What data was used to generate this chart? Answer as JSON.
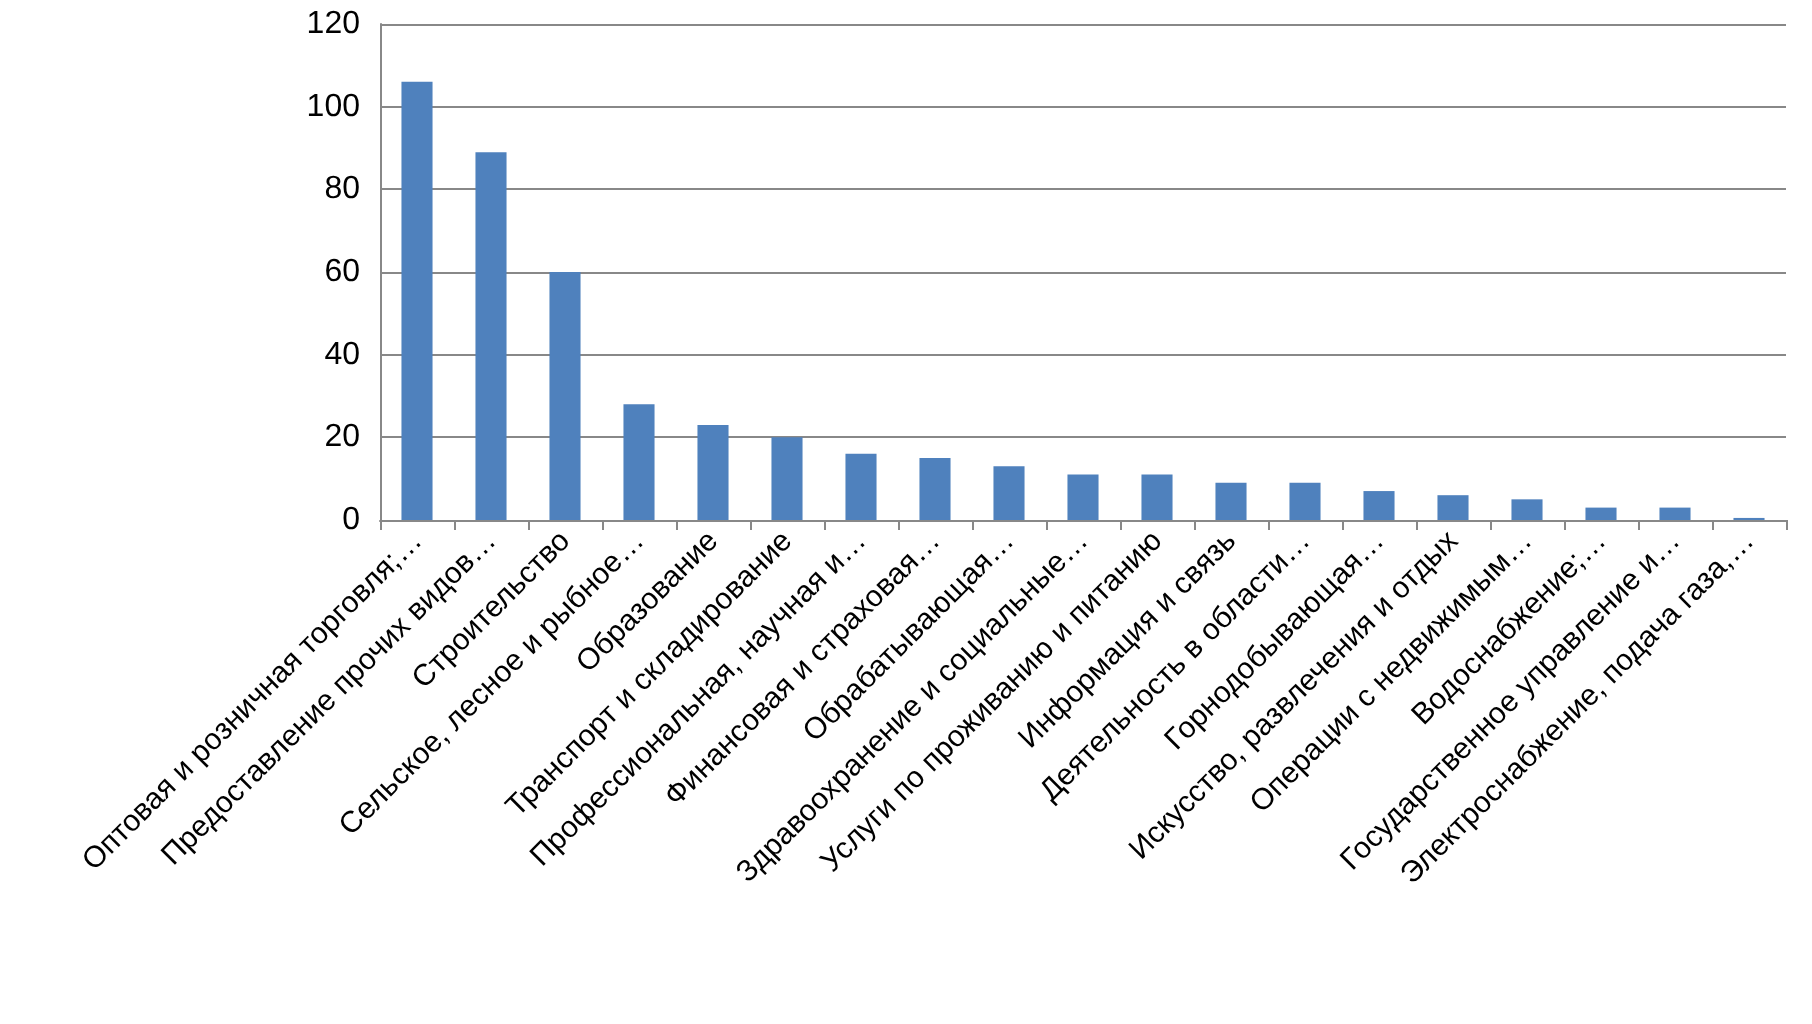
{
  "chart_data": {
    "type": "bar",
    "categories": [
      "Оптовая и розничная торговля;…",
      "Предоставление прочих видов…",
      "Строительство",
      "Сельское, лесное и рыбное…",
      "Образование",
      "Транспорт и складирование",
      "Профессиональная, научная и…",
      "Финансовая и страховая…",
      "Обрабатывающая…",
      "Здравоохранение и социальные…",
      "Услуги по проживанию и питанию",
      "Информация и связь",
      "Деятельность в области…",
      "Горнодобывающая…",
      "Искусство, развлечения и отдых",
      "Операции с недвижимым…",
      "Водоснабжение;…",
      "Государственное управление и…",
      "Электроснабжение, подача газа,…"
    ],
    "values": [
      106,
      89,
      60,
      28,
      23,
      20,
      16,
      15,
      13,
      11,
      11,
      9,
      9,
      7,
      6,
      5,
      3,
      3,
      0.5
    ],
    "color": "#4f81bd",
    "ylim": [
      0,
      120
    ],
    "yticks": [
      0,
      20,
      40,
      60,
      80,
      100,
      120
    ],
    "grid": "y"
  }
}
